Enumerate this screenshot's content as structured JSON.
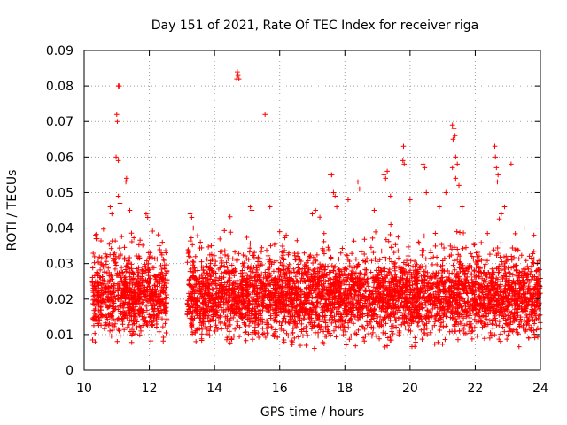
{
  "chart_data": {
    "type": "scatter",
    "title": "Day 151 of 2021, Rate Of TEC Index for receiver riga",
    "xlabel": "GPS time / hours",
    "ylabel": "ROTI / TECUs",
    "xlim": [
      10,
      24
    ],
    "ylim": [
      0,
      0.09
    ],
    "xticks": [
      "10",
      "12",
      "14",
      "16",
      "18",
      "20",
      "22",
      "24"
    ],
    "yticks": [
      "0",
      "0.01",
      "0.02",
      "0.03",
      "0.04",
      "0.05",
      "0.06",
      "0.07",
      "0.08",
      "0.09"
    ],
    "grid": true,
    "marker": "+",
    "color": "#ff0000",
    "series": [
      {
        "name": "ROTI",
        "data_gap": [
          12.55,
          13.15
        ],
        "points": [
          [
            11.05,
            0.08
          ],
          [
            11.08,
            0.08
          ],
          [
            11.0,
            0.072
          ],
          [
            11.02,
            0.07
          ],
          [
            10.98,
            0.06
          ],
          [
            11.05,
            0.059
          ],
          [
            11.3,
            0.054
          ],
          [
            11.28,
            0.053
          ],
          [
            11.05,
            0.049
          ],
          [
            11.1,
            0.047
          ],
          [
            10.35,
            0.038
          ],
          [
            10.4,
            0.037
          ],
          [
            10.8,
            0.046
          ],
          [
            10.85,
            0.044
          ],
          [
            11.4,
            0.045
          ],
          [
            11.9,
            0.044
          ],
          [
            11.95,
            0.043
          ],
          [
            12.4,
            0.036
          ],
          [
            12.3,
            0.035
          ],
          [
            13.25,
            0.044
          ],
          [
            13.3,
            0.043
          ],
          [
            13.35,
            0.04
          ],
          [
            13.9,
            0.035
          ],
          [
            14.7,
            0.084
          ],
          [
            14.72,
            0.083
          ],
          [
            14.75,
            0.082
          ],
          [
            14.68,
            0.082
          ],
          [
            15.55,
            0.072
          ],
          [
            15.1,
            0.046
          ],
          [
            15.15,
            0.045
          ],
          [
            15.7,
            0.046
          ],
          [
            16.0,
            0.039
          ],
          [
            16.2,
            0.038
          ],
          [
            17.0,
            0.044
          ],
          [
            17.1,
            0.045
          ],
          [
            17.55,
            0.055
          ],
          [
            17.6,
            0.055
          ],
          [
            17.65,
            0.05
          ],
          [
            17.7,
            0.049
          ],
          [
            17.75,
            0.046
          ],
          [
            18.1,
            0.048
          ],
          [
            18.4,
            0.053
          ],
          [
            18.45,
            0.051
          ],
          [
            18.9,
            0.045
          ],
          [
            19.2,
            0.055
          ],
          [
            19.3,
            0.056
          ],
          [
            19.25,
            0.054
          ],
          [
            19.8,
            0.063
          ],
          [
            19.78,
            0.059
          ],
          [
            19.82,
            0.058
          ],
          [
            19.4,
            0.049
          ],
          [
            20.0,
            0.048
          ],
          [
            20.4,
            0.058
          ],
          [
            20.45,
            0.057
          ],
          [
            20.5,
            0.05
          ],
          [
            21.3,
            0.069
          ],
          [
            21.35,
            0.068
          ],
          [
            21.38,
            0.066
          ],
          [
            21.32,
            0.065
          ],
          [
            21.4,
            0.06
          ],
          [
            21.45,
            0.058
          ],
          [
            21.3,
            0.057
          ],
          [
            21.4,
            0.054
          ],
          [
            21.5,
            0.052
          ],
          [
            21.1,
            0.05
          ],
          [
            20.9,
            0.046
          ],
          [
            21.6,
            0.046
          ],
          [
            22.6,
            0.063
          ],
          [
            22.62,
            0.06
          ],
          [
            22.65,
            0.057
          ],
          [
            22.7,
            0.055
          ],
          [
            22.68,
            0.053
          ],
          [
            23.1,
            0.058
          ],
          [
            22.9,
            0.046
          ],
          [
            22.8,
            0.044
          ],
          [
            23.5,
            0.04
          ],
          [
            23.8,
            0.038
          ]
        ]
      }
    ]
  }
}
